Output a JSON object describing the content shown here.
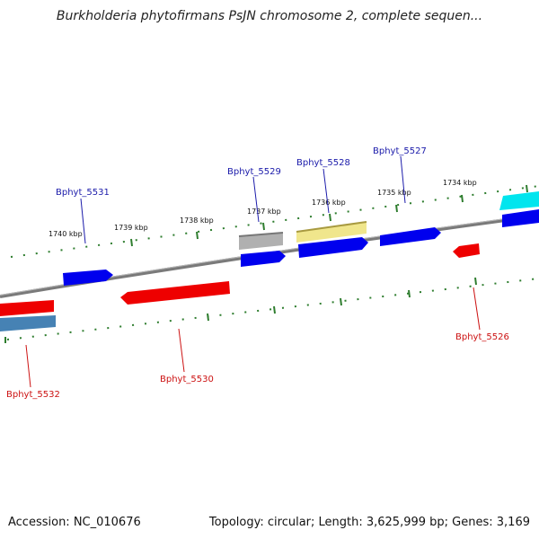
{
  "title": "Burkholderia phytofirmans PsJN chromosome 2, complete sequen...",
  "footer": {
    "accession": "Accession: NC_010676",
    "summary": "Topology: circular; Length: 3,625,999 bp; Genes: 3,169"
  },
  "ticks": [
    {
      "id": "1734",
      "label": "1734 kbp"
    },
    {
      "id": "1735",
      "label": "1735 kbp"
    },
    {
      "id": "1736",
      "label": "1736 kbp"
    },
    {
      "id": "1737",
      "label": "1737 kbp"
    },
    {
      "id": "1738",
      "label": "1738 kbp"
    },
    {
      "id": "1739",
      "label": "1739 kbp"
    },
    {
      "id": "1740",
      "label": "1740 kbp"
    }
  ],
  "gene_labels": [
    {
      "id": "5527",
      "label": "Bphyt_5527",
      "strand": "forward"
    },
    {
      "id": "5528",
      "label": "Bphyt_5528",
      "strand": "forward"
    },
    {
      "id": "5529",
      "label": "Bphyt_5529",
      "strand": "forward"
    },
    {
      "id": "5531",
      "label": "Bphyt_5531",
      "strand": "forward"
    },
    {
      "id": "5526",
      "label": "Bphyt_5526",
      "strand": "reverse"
    },
    {
      "id": "5530",
      "label": "Bphyt_5530",
      "strand": "reverse"
    },
    {
      "id": "5532",
      "label": "Bphyt_5532",
      "strand": "reverse"
    }
  ],
  "colors": {
    "backbone": "#7a7a7a",
    "tick": "#2e7d2e",
    "forward_label": "#1a1aaa",
    "reverse_label": "#cc1111",
    "gene_blue": "#0000ee",
    "gene_red": "#ee0000",
    "gene_gray": "#aaaaaa",
    "gene_khaki": "#f0e68c",
    "gene_cyan": "#00e5ee",
    "gene_steel": "#4682b4"
  }
}
